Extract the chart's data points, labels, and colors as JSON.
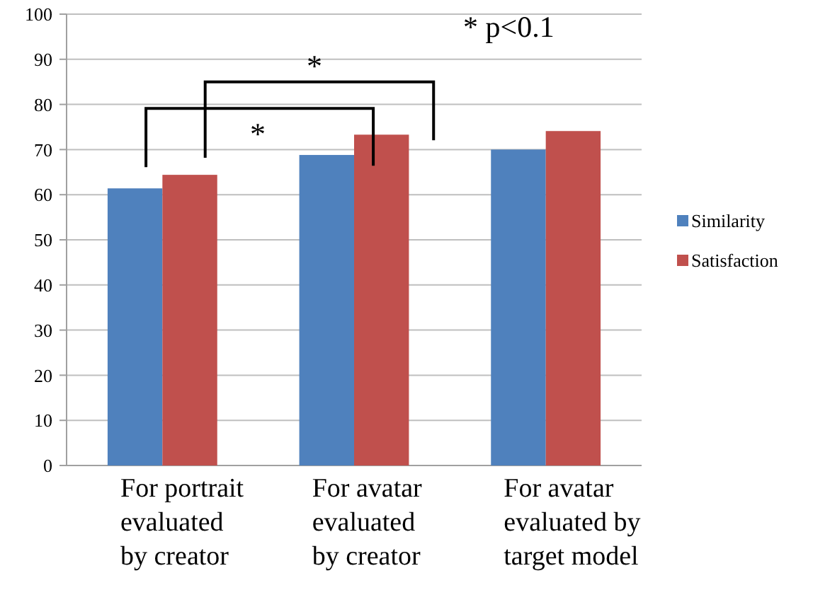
{
  "chart_data": {
    "type": "bar",
    "categories": [
      "For portrait\nevaluated\nby creator",
      "For avatar\nevaluated\nby creator",
      "For avatar\nevaluated by\ntarget model"
    ],
    "series": [
      {
        "name": "Similarity",
        "color": "#4f81bd",
        "values": [
          61.4,
          68.8,
          70.0
        ]
      },
      {
        "name": "Satisfaction",
        "color": "#c0504d",
        "values": [
          64.4,
          73.3,
          74.1
        ]
      }
    ],
    "ylim": [
      0,
      100
    ],
    "yticks": [
      0,
      10,
      20,
      30,
      40,
      50,
      60,
      70,
      80,
      90,
      100
    ],
    "grid": "y",
    "legend": "right",
    "annotations": [
      "*",
      "*",
      "* p<0.1"
    ]
  }
}
